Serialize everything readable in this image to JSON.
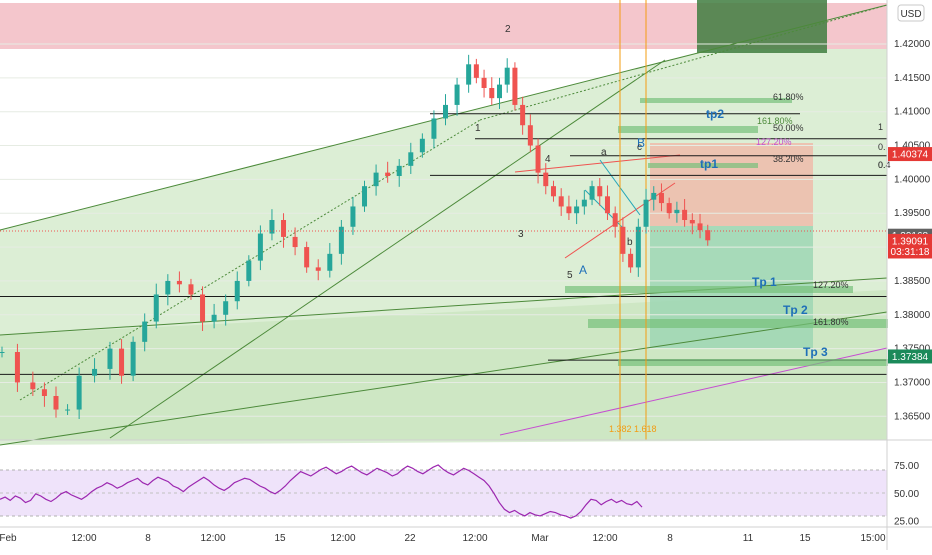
{
  "currency_label": "USD",
  "price_axis": {
    "ticks": [
      "1.42000",
      "1.41500",
      "1.41000",
      "1.40500",
      "1.40000",
      "1.39500",
      "1.39000",
      "1.38500",
      "1.38000",
      "1.37500",
      "1.37000",
      "1.36500"
    ],
    "badges": [
      {
        "text": "1.40374",
        "value": 1.40374,
        "color": "#e53935"
      },
      {
        "text": "1.39168",
        "value": 1.39168,
        "color": "#616161"
      },
      {
        "text": "1.39091",
        "value": 1.39091,
        "color": "#e53935"
      },
      {
        "text": "03:31:18",
        "value": 1.38935,
        "color": "#e53935"
      },
      {
        "text": "1.37384",
        "value": 1.37384,
        "color": "#1b8a5a"
      }
    ]
  },
  "time_axis": [
    "Feb",
    "12:00",
    "8",
    "12:00",
    "15",
    "12:00",
    "22",
    "12:00",
    "Mar",
    "12:00",
    "8",
    "11",
    "15",
    "15:00"
  ],
  "rsi_axis": [
    "75.00",
    "50.00",
    "25.00"
  ],
  "annotations": {
    "wave_labels": [
      "2",
      "1",
      "4",
      "3",
      "5",
      "A",
      "a",
      "b",
      "B",
      "c"
    ],
    "targets": [
      "tp2",
      "tp1",
      "Tp 1",
      "Tp 2",
      "Tp 3"
    ],
    "fib_labels": [
      "61.80%",
      "161.80%",
      "50.00%",
      "127.20%",
      "38.20%",
      "127.20%",
      "161.80%"
    ],
    "fib_edge": [
      "1",
      "0.",
      "0.",
      "0.4"
    ],
    "vertical_labels": [
      "1.382",
      "1.618"
    ]
  },
  "colors": {
    "bull": "#26a69a",
    "bear": "#ef5350",
    "zone_green": "#b7dca4",
    "zone_red": "#f2b8bf",
    "rsi_line": "#9c27b0",
    "target_text": "#1e6fb8",
    "vertical_line": "#f39c12"
  },
  "chart_data": {
    "type": "candlestick",
    "symbol_currency": "USD",
    "ylim": [
      1.3615,
      1.4265
    ],
    "x_labels": [
      "Feb",
      "12:00",
      "8",
      "12:00",
      "15",
      "12:00",
      "22",
      "12:00",
      "Mar",
      "12:00",
      "8",
      "11",
      "15",
      "15:00"
    ],
    "close_path": [
      [
        0,
        1.3745
      ],
      [
        4,
        1.37
      ],
      [
        8,
        1.369
      ],
      [
        11,
        1.368
      ],
      [
        14,
        1.366
      ],
      [
        17,
        1.366
      ],
      [
        20,
        1.371
      ],
      [
        24,
        1.372
      ],
      [
        28,
        1.375
      ],
      [
        31,
        1.371
      ],
      [
        34,
        1.376
      ],
      [
        37,
        1.379
      ],
      [
        40,
        1.383
      ],
      [
        43,
        1.385
      ],
      [
        46,
        1.3845
      ],
      [
        49,
        1.383
      ],
      [
        52,
        1.379
      ],
      [
        55,
        1.38
      ],
      [
        58,
        1.382
      ],
      [
        61,
        1.385
      ],
      [
        64,
        1.388
      ],
      [
        67,
        1.392
      ],
      [
        70,
        1.394
      ],
      [
        73,
        1.3915
      ],
      [
        76,
        1.39
      ],
      [
        79,
        1.387
      ],
      [
        82,
        1.3865
      ],
      [
        85,
        1.389
      ],
      [
        88,
        1.393
      ],
      [
        91,
        1.396
      ],
      [
        94,
        1.399
      ],
      [
        97,
        1.401
      ],
      [
        100,
        1.4005
      ],
      [
        103,
        1.402
      ],
      [
        106,
        1.404
      ],
      [
        109,
        1.406
      ],
      [
        112,
        1.409
      ],
      [
        115,
        1.411
      ],
      [
        118,
        1.414
      ],
      [
        121,
        1.417
      ],
      [
        123,
        1.415
      ],
      [
        125,
        1.4135
      ],
      [
        127,
        1.412
      ],
      [
        129,
        1.414
      ],
      [
        131,
        1.4165
      ],
      [
        133,
        1.411
      ],
      [
        135,
        1.408
      ],
      [
        137,
        1.405
      ],
      [
        139,
        1.401
      ],
      [
        141,
        1.399
      ],
      [
        143,
        1.3975
      ],
      [
        145,
        1.396
      ],
      [
        147,
        1.395
      ],
      [
        149,
        1.396
      ],
      [
        151,
        1.397
      ],
      [
        153,
        1.399
      ],
      [
        155,
        1.3975
      ],
      [
        157,
        1.395
      ],
      [
        159,
        1.393
      ],
      [
        161,
        1.389
      ],
      [
        163,
        1.387
      ],
      [
        165,
        1.393
      ],
      [
        167,
        1.397
      ],
      [
        169,
        1.398
      ],
      [
        171,
        1.3965
      ],
      [
        173,
        1.395
      ],
      [
        175,
        1.3955
      ],
      [
        177,
        1.394
      ],
      [
        179,
        1.3935
      ],
      [
        181,
        1.3925
      ],
      [
        183,
        1.391
      ]
    ],
    "x_index_range": [
      0,
      230
    ],
    "horizontal_levels": [
      1.4097,
      1.406,
      1.4035,
      1.4006,
      1.3827,
      1.3733,
      1.3712
    ],
    "fibonacci": [
      {
        "label": "61.80%",
        "value": 1.4097
      },
      {
        "label": "161.80%",
        "value": 1.4065
      },
      {
        "label": "50.00%",
        "value": 1.406
      },
      {
        "label": "127.20%",
        "value": 1.404
      },
      {
        "label": "38.20%",
        "value": 1.4003
      },
      {
        "label": "127.20%",
        "value": 1.3819
      },
      {
        "label": "161.80%",
        "value": 1.378
      }
    ],
    "targets": [
      {
        "label": "tp2",
        "value": 1.408
      },
      {
        "label": "tp1",
        "value": 1.4005
      },
      {
        "label": "Tp 1",
        "value": 1.3822
      },
      {
        "label": "Tp 2",
        "value": 1.3779
      },
      {
        "label": "Tp 3",
        "value": 1.3712
      }
    ],
    "price_badges": [
      1.40374,
      1.39168,
      1.39091,
      1.37384
    ],
    "rsi": {
      "ylim": [
        20,
        85
      ],
      "levels": [
        70,
        50,
        30
      ],
      "values": [
        45,
        47,
        44,
        48,
        46,
        42,
        44,
        50,
        48,
        45,
        43,
        46,
        50,
        52,
        49,
        47,
        45,
        48,
        52,
        55,
        57,
        60,
        58,
        55,
        57,
        60,
        62,
        64,
        60,
        58,
        62,
        65,
        63,
        61,
        57,
        55,
        52,
        56,
        59,
        62,
        65,
        62,
        58,
        55,
        53,
        56,
        60,
        62,
        64,
        63,
        60,
        57,
        55,
        52,
        50,
        53,
        57,
        62,
        66,
        70,
        68,
        66,
        69,
        72,
        74,
        71,
        68,
        70,
        73,
        75,
        72,
        69,
        67,
        70,
        73,
        71,
        69,
        66,
        68,
        72,
        75,
        73,
        70,
        68,
        71,
        74,
        76,
        72,
        69,
        67,
        70,
        73,
        71,
        68,
        65,
        62,
        57,
        50,
        42,
        36,
        33,
        35,
        32,
        30,
        33,
        31,
        30,
        32,
        34,
        33,
        31,
        30,
        28,
        30,
        34,
        40,
        45,
        44,
        40,
        43,
        45,
        42,
        44,
        41,
        40,
        43,
        38
      ]
    },
    "volume_shaded": false
  }
}
